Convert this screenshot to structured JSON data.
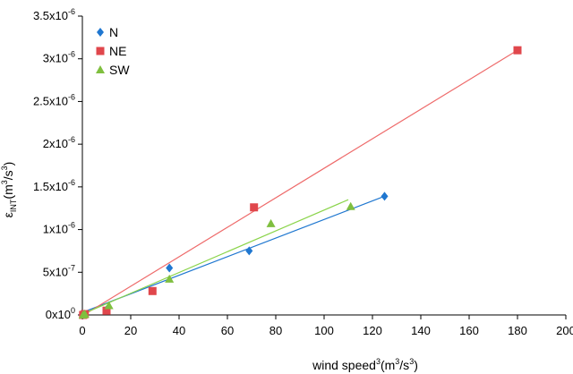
{
  "chart_data": {
    "type": "scatter",
    "title": "",
    "xlabel": {
      "base": "wind speed",
      "sup1": "3",
      "mid": "(m",
      "sup2": "3",
      "mid2": "/s",
      "sup3": "3",
      "end": ")"
    },
    "ylabel": {
      "base": "ε",
      "sub": "INT",
      "mid": "(m",
      "sup1": "3",
      "mid2": "/s",
      "sup2": "3",
      "end": ")"
    },
    "xlim": [
      0,
      200
    ],
    "ylim": [
      0,
      3.5e-06
    ],
    "x_ticks": [
      0,
      20,
      40,
      60,
      80,
      100,
      120,
      140,
      160,
      180,
      200
    ],
    "x_tick_labels": [
      "0",
      "20",
      "40",
      "60",
      "80",
      "100",
      "120",
      "140",
      "160",
      "180",
      "200"
    ],
    "y_ticks": [
      {
        "value": 0,
        "mant": "0x10",
        "exp": "0"
      },
      {
        "value": 5e-07,
        "mant": "5x10",
        "exp": "-7"
      },
      {
        "value": 1e-06,
        "mant": "1x10",
        "exp": "-6"
      },
      {
        "value": 1.5e-06,
        "mant": "1.5x10",
        "exp": "-6"
      },
      {
        "value": 2e-06,
        "mant": "2x10",
        "exp": "-6"
      },
      {
        "value": 2.5e-06,
        "mant": "2.5x10",
        "exp": "-6"
      },
      {
        "value": 3e-06,
        "mant": "3x10",
        "exp": "-6"
      },
      {
        "value": 3.5e-06,
        "mant": "3.5x10",
        "exp": "-6"
      }
    ],
    "grid": false,
    "legend_position": "top-left",
    "series": [
      {
        "name": "N",
        "marker": "diamond",
        "color": "#1f77d0",
        "points": [
          [
            0.3,
            0.0
          ],
          [
            1,
            1e-08
          ],
          [
            10,
            6e-08
          ],
          [
            36,
            5.5e-07
          ],
          [
            69,
            7.5e-07
          ],
          [
            125,
            1.39e-06
          ]
        ],
        "trend": [
          [
            0,
            3e-08
          ],
          [
            125,
            1.39e-06
          ]
        ],
        "trend_color": "#1f77d0"
      },
      {
        "name": "NE",
        "marker": "square",
        "color": "#e0474c",
        "points": [
          [
            0.3,
            0.0
          ],
          [
            1,
            1e-08
          ],
          [
            10,
            5e-08
          ],
          [
            29,
            2.8e-07
          ],
          [
            71,
            1.26e-06
          ],
          [
            180,
            3.1e-06
          ]
        ],
        "trend": [
          [
            0,
            -1e-08
          ],
          [
            180,
            3.1e-06
          ]
        ],
        "trend_color": "#ee6a6a"
      },
      {
        "name": "SW",
        "marker": "triangle",
        "color": "#7fbf3f",
        "points": [
          [
            0.3,
            0.0
          ],
          [
            1,
            1e-08
          ],
          [
            11,
            1.1e-07
          ],
          [
            36,
            4.2e-07
          ],
          [
            78,
            1.07e-06
          ],
          [
            111,
            1.27e-06
          ]
        ],
        "trend": [
          [
            0,
            1e-08
          ],
          [
            110,
            1.35e-06
          ]
        ],
        "trend_color": "#8ad44a"
      }
    ]
  }
}
